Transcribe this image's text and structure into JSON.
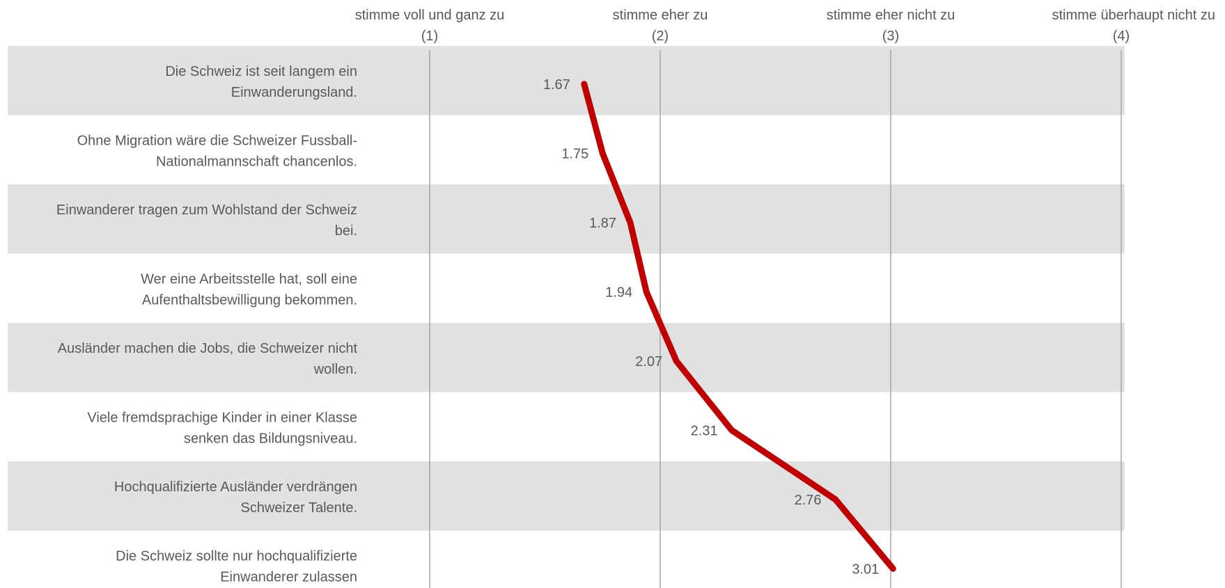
{
  "chart_data": {
    "type": "line",
    "orientation": "horizontal",
    "categories": [
      [
        "Die Schweiz ist seit langem ein",
        "Einwanderungsland."
      ],
      [
        "Ohne Migration wäre die Schweizer Fussball-",
        "Nationalmannschaft chancenlos."
      ],
      [
        "Einwanderer tragen zum Wohlstand der Schweiz",
        "bei."
      ],
      [
        "Wer eine Arbeitsstelle hat, soll eine",
        "Aufenthaltsbewilligung bekommen."
      ],
      [
        "Ausländer machen die Jobs, die Schweizer nicht",
        "wollen."
      ],
      [
        "Viele fremdsprachige Kinder in einer Klasse",
        "senken das Bildungsniveau."
      ],
      [
        "Hochqualifizierte Ausländer verdrängen",
        "Schweizer Talente."
      ],
      [
        "Die Schweiz sollte nur hochqualifizierte",
        "Einwanderer zulassen"
      ]
    ],
    "values": [
      1.67,
      1.75,
      1.87,
      1.94,
      2.07,
      2.31,
      2.76,
      3.01
    ],
    "value_labels": [
      "1.67",
      "1.75",
      "1.87",
      "1.94",
      "2.07",
      "2.31",
      "2.76",
      "3.01"
    ],
    "xlim": [
      1,
      4
    ],
    "axis_ticks": [
      {
        "value": 1,
        "label": "stimme voll und ganz zu",
        "code": "(1)"
      },
      {
        "value": 2,
        "label": "stimme eher zu",
        "code": "(2)"
      },
      {
        "value": 3,
        "label": "stimme eher nicht zu",
        "code": "(3)"
      },
      {
        "value": 4,
        "label": "stimme überhaupt nicht zu",
        "code": "(4)"
      }
    ],
    "grid": true,
    "colors": {
      "line": "#c00000",
      "band": "#e0e1e1",
      "gridline": "#a6a6a6",
      "text": "#595959"
    }
  }
}
